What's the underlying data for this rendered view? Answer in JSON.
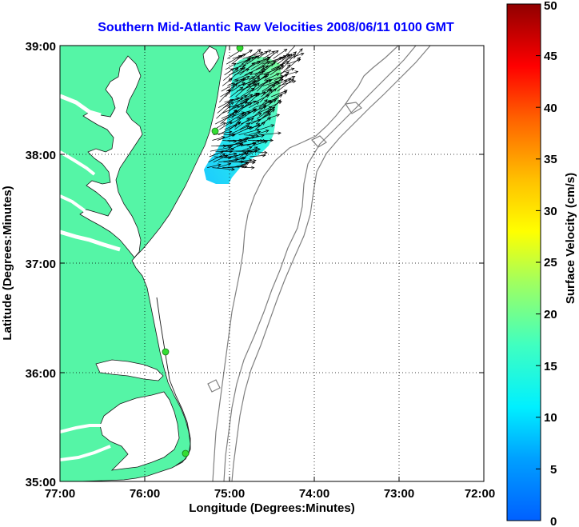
{
  "chart_data": {
    "type": "map",
    "title": "Southern Mid-Atlantic Raw Velocities 2008/06/11 0100 GMT",
    "xlabel": "Longitude (Degrees:Minutes)",
    "ylabel": "Latitude (Degrees:Minutes)",
    "x_ticks": [
      "77:00",
      "76:00",
      "75:00",
      "74:00",
      "73:00",
      "72:00"
    ],
    "y_ticks": [
      "39:00",
      "38:00",
      "37:00",
      "36:00",
      "35:00"
    ],
    "xlim": [
      -77,
      -72
    ],
    "ylim": [
      35,
      39
    ],
    "grid": true,
    "grid_style": "dotted",
    "colorbar": {
      "label": "Surface Velocity (cm/s)",
      "ticks": [
        "50",
        "45",
        "40",
        "35",
        "30",
        "25",
        "20",
        "15",
        "10",
        "5",
        "0"
      ],
      "range": [
        0,
        50
      ],
      "colormap": "jet"
    },
    "colors": {
      "land": "#55f5a6",
      "ocean": "#ffffff",
      "bathymetry": "#808080",
      "station": "#33dd33",
      "title": "#0000ff"
    },
    "stations": [
      {
        "lon": -74.87,
        "lat": 38.98
      },
      {
        "lon": -75.15,
        "lat": 38.22
      },
      {
        "lon": -75.72,
        "lat": 36.18
      },
      {
        "lon": -75.52,
        "lat": 35.27
      }
    ],
    "velocity_field": {
      "lon_range": [
        -75.08,
        -74.2
      ],
      "lat_range": [
        37.85,
        38.9
      ],
      "dominant_direction": "east-northeast",
      "typical_speed_cm_s": [
        10,
        20
      ]
    }
  }
}
